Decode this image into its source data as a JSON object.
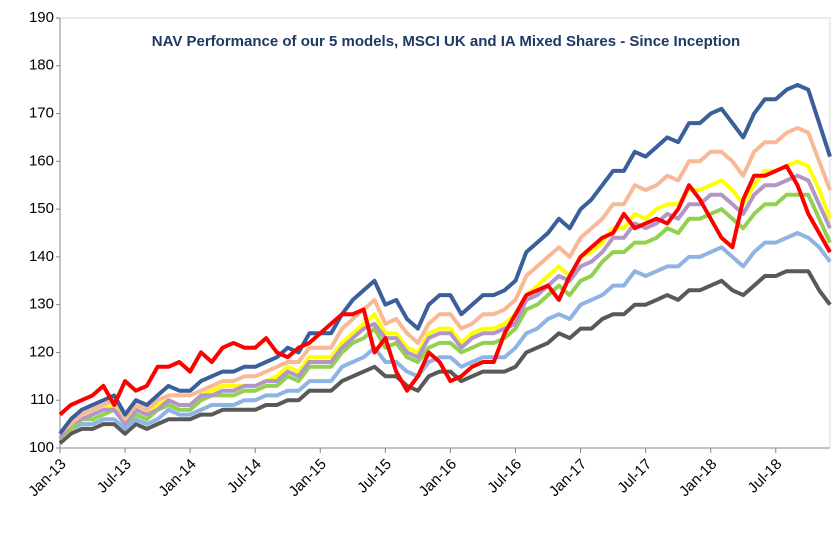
{
  "chart_data": {
    "type": "line",
    "title": "NAV Performance of our 5 models, MSCI UK and IA Mixed Shares - Since Inception",
    "categories": [
      "Jan-13",
      null,
      null,
      null,
      null,
      null,
      "Jul-13",
      null,
      null,
      null,
      null,
      null,
      "Jan-14",
      null,
      null,
      null,
      null,
      null,
      "Jul-14",
      null,
      null,
      null,
      null,
      null,
      "Jan-15",
      null,
      null,
      null,
      null,
      null,
      "Jul-15",
      null,
      null,
      null,
      null,
      null,
      "Jan-16",
      null,
      null,
      null,
      null,
      null,
      "Jul-16",
      null,
      null,
      null,
      null,
      null,
      "Jan-17",
      null,
      null,
      null,
      null,
      null,
      "Jul-17",
      null,
      null,
      null,
      null,
      null,
      "Jan-18",
      null,
      null,
      null,
      null,
      null,
      "Jul-18",
      null,
      null,
      null,
      null,
      null
    ],
    "ylim": [
      100,
      190
    ],
    "yticks": [
      100,
      110,
      120,
      130,
      140,
      150,
      160,
      170,
      180,
      190
    ],
    "grid": false,
    "series": [
      {
        "color": "#595959",
        "values": [
          101,
          103,
          104,
          104,
          105,
          105,
          103,
          105,
          104,
          105,
          106,
          106,
          106,
          107,
          107,
          108,
          108,
          108,
          108,
          109,
          109,
          110,
          110,
          112,
          112,
          112,
          114,
          115,
          116,
          117,
          115,
          115,
          113,
          112,
          115,
          116,
          116,
          114,
          115,
          116,
          116,
          116,
          117,
          120,
          121,
          122,
          124,
          123,
          125,
          125,
          127,
          128,
          128,
          130,
          130,
          131,
          132,
          131,
          133,
          133,
          134,
          135,
          133,
          132,
          134,
          136,
          136,
          137,
          137,
          137,
          133,
          130
        ]
      },
      {
        "color": "#8DB4E2",
        "values": [
          102,
          104,
          105,
          105,
          106,
          106,
          104,
          106,
          105,
          106,
          108,
          107,
          107,
          108,
          109,
          109,
          109,
          110,
          110,
          111,
          111,
          112,
          112,
          114,
          114,
          114,
          117,
          118,
          119,
          121,
          118,
          118,
          116,
          115,
          118,
          119,
          119,
          117,
          118,
          119,
          119,
          119,
          121,
          124,
          125,
          127,
          128,
          127,
          130,
          131,
          132,
          134,
          134,
          137,
          136,
          137,
          138,
          138,
          140,
          140,
          141,
          142,
          140,
          138,
          141,
          143,
          143,
          144,
          145,
          144,
          142,
          139
        ]
      },
      {
        "color": "#92D050",
        "values": [
          102,
          104,
          106,
          106,
          107,
          108,
          105,
          107,
          106,
          108,
          109,
          108,
          108,
          110,
          111,
          111,
          111,
          112,
          112,
          113,
          113,
          115,
          114,
          117,
          117,
          117,
          120,
          122,
          123,
          125,
          121,
          122,
          119,
          118,
          121,
          122,
          122,
          120,
          121,
          122,
          122,
          123,
          125,
          129,
          130,
          132,
          134,
          132,
          135,
          136,
          139,
          141,
          141,
          143,
          143,
          144,
          146,
          145,
          148,
          148,
          149,
          150,
          148,
          146,
          149,
          151,
          151,
          153,
          153,
          153,
          148,
          143
        ]
      },
      {
        "color": "#FFFF00",
        "values": [
          102,
          105,
          106,
          107,
          108,
          109,
          106,
          108,
          107,
          109,
          110,
          109,
          109,
          111,
          112,
          113,
          113,
          113,
          113,
          114,
          115,
          117,
          116,
          119,
          119,
          119,
          122,
          124,
          126,
          128,
          124,
          124,
          121,
          120,
          124,
          125,
          125,
          122,
          124,
          125,
          125,
          126,
          128,
          132,
          134,
          136,
          138,
          136,
          140,
          141,
          143,
          146,
          146,
          149,
          148,
          150,
          151,
          151,
          154,
          154,
          155,
          156,
          154,
          151,
          155,
          158,
          158,
          159,
          160,
          159,
          154,
          148
        ]
      },
      {
        "color": "#B196C8",
        "values": [
          102,
          105,
          106,
          107,
          108,
          108,
          105,
          108,
          107,
          108,
          110,
          109,
          109,
          111,
          111,
          112,
          112,
          113,
          113,
          114,
          114,
          116,
          115,
          118,
          118,
          118,
          121,
          123,
          125,
          126,
          123,
          123,
          120,
          119,
          123,
          124,
          124,
          121,
          123,
          124,
          124,
          125,
          126,
          131,
          132,
          134,
          136,
          135,
          138,
          139,
          141,
          144,
          144,
          147,
          146,
          147,
          149,
          148,
          151,
          151,
          153,
          153,
          151,
          149,
          153,
          155,
          155,
          156,
          157,
          156,
          151,
          146
        ]
      },
      {
        "color": "#F8B994",
        "values": [
          103,
          105,
          107,
          108,
          109,
          110,
          106,
          109,
          108,
          110,
          111,
          111,
          111,
          112,
          113,
          114,
          114,
          115,
          115,
          116,
          117,
          118,
          118,
          121,
          121,
          121,
          125,
          127,
          129,
          131,
          126,
          127,
          124,
          122,
          126,
          128,
          128,
          125,
          126,
          128,
          128,
          129,
          131,
          136,
          138,
          140,
          142,
          140,
          144,
          146,
          148,
          151,
          151,
          155,
          154,
          155,
          157,
          156,
          160,
          160,
          162,
          162,
          160,
          157,
          162,
          164,
          164,
          166,
          167,
          166,
          160,
          154
        ]
      },
      {
        "color": "#3A5F9A",
        "values": [
          103,
          106,
          108,
          109,
          110,
          111,
          107,
          110,
          109,
          111,
          113,
          112,
          112,
          114,
          115,
          116,
          116,
          117,
          117,
          118,
          119,
          121,
          120,
          124,
          124,
          124,
          128,
          131,
          133,
          135,
          130,
          131,
          127,
          125,
          130,
          132,
          132,
          128,
          130,
          132,
          132,
          133,
          135,
          141,
          143,
          145,
          148,
          146,
          150,
          152,
          155,
          158,
          158,
          162,
          161,
          163,
          165,
          164,
          168,
          168,
          170,
          171,
          168,
          165,
          170,
          173,
          173,
          175,
          176,
          175,
          168,
          161
        ]
      },
      {
        "color": "#FF0000",
        "values": [
          107,
          109,
          110,
          111,
          113,
          109,
          114,
          112,
          113,
          117,
          117,
          118,
          116,
          120,
          118,
          121,
          122,
          121,
          121,
          123,
          120,
          119,
          121,
          122,
          124,
          126,
          128,
          128,
          129,
          120,
          123,
          116,
          112,
          115,
          120,
          118,
          114,
          115,
          117,
          118,
          118,
          124,
          128,
          132,
          133,
          134,
          131,
          136,
          140,
          142,
          144,
          145,
          149,
          146,
          147,
          148,
          147,
          150,
          155,
          152,
          148,
          144,
          142,
          152,
          157,
          157,
          158,
          159,
          155,
          149,
          145,
          141
        ]
      }
    ]
  }
}
